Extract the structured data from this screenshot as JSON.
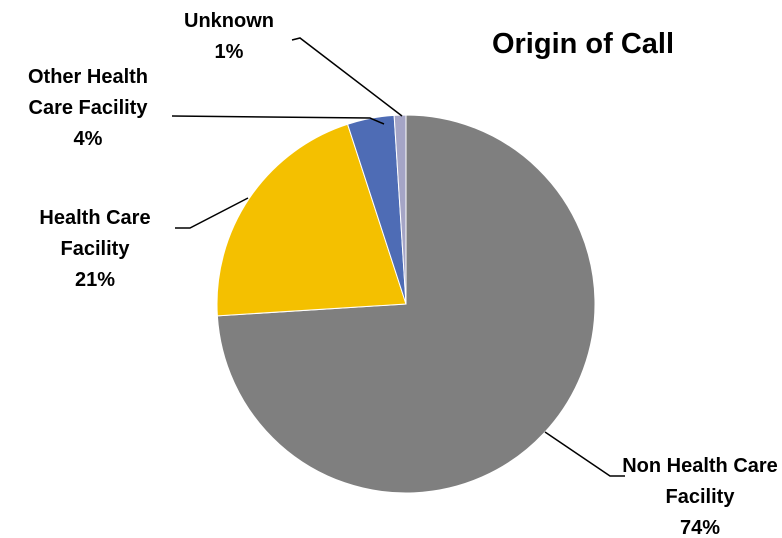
{
  "chart_data": {
    "type": "pie",
    "title": "Origin of Call",
    "categories": [
      "Non Health Care Facility",
      "Health Care Facility",
      "Other Health Care Facility",
      "Unknown"
    ],
    "values": [
      74,
      21,
      4,
      1
    ],
    "value_labels": [
      "74%",
      "21%",
      "4%",
      "1%"
    ],
    "colors": [
      "#7f7f7f",
      "#f4c000",
      "#4e6cb5",
      "#a5a5c6"
    ]
  }
}
